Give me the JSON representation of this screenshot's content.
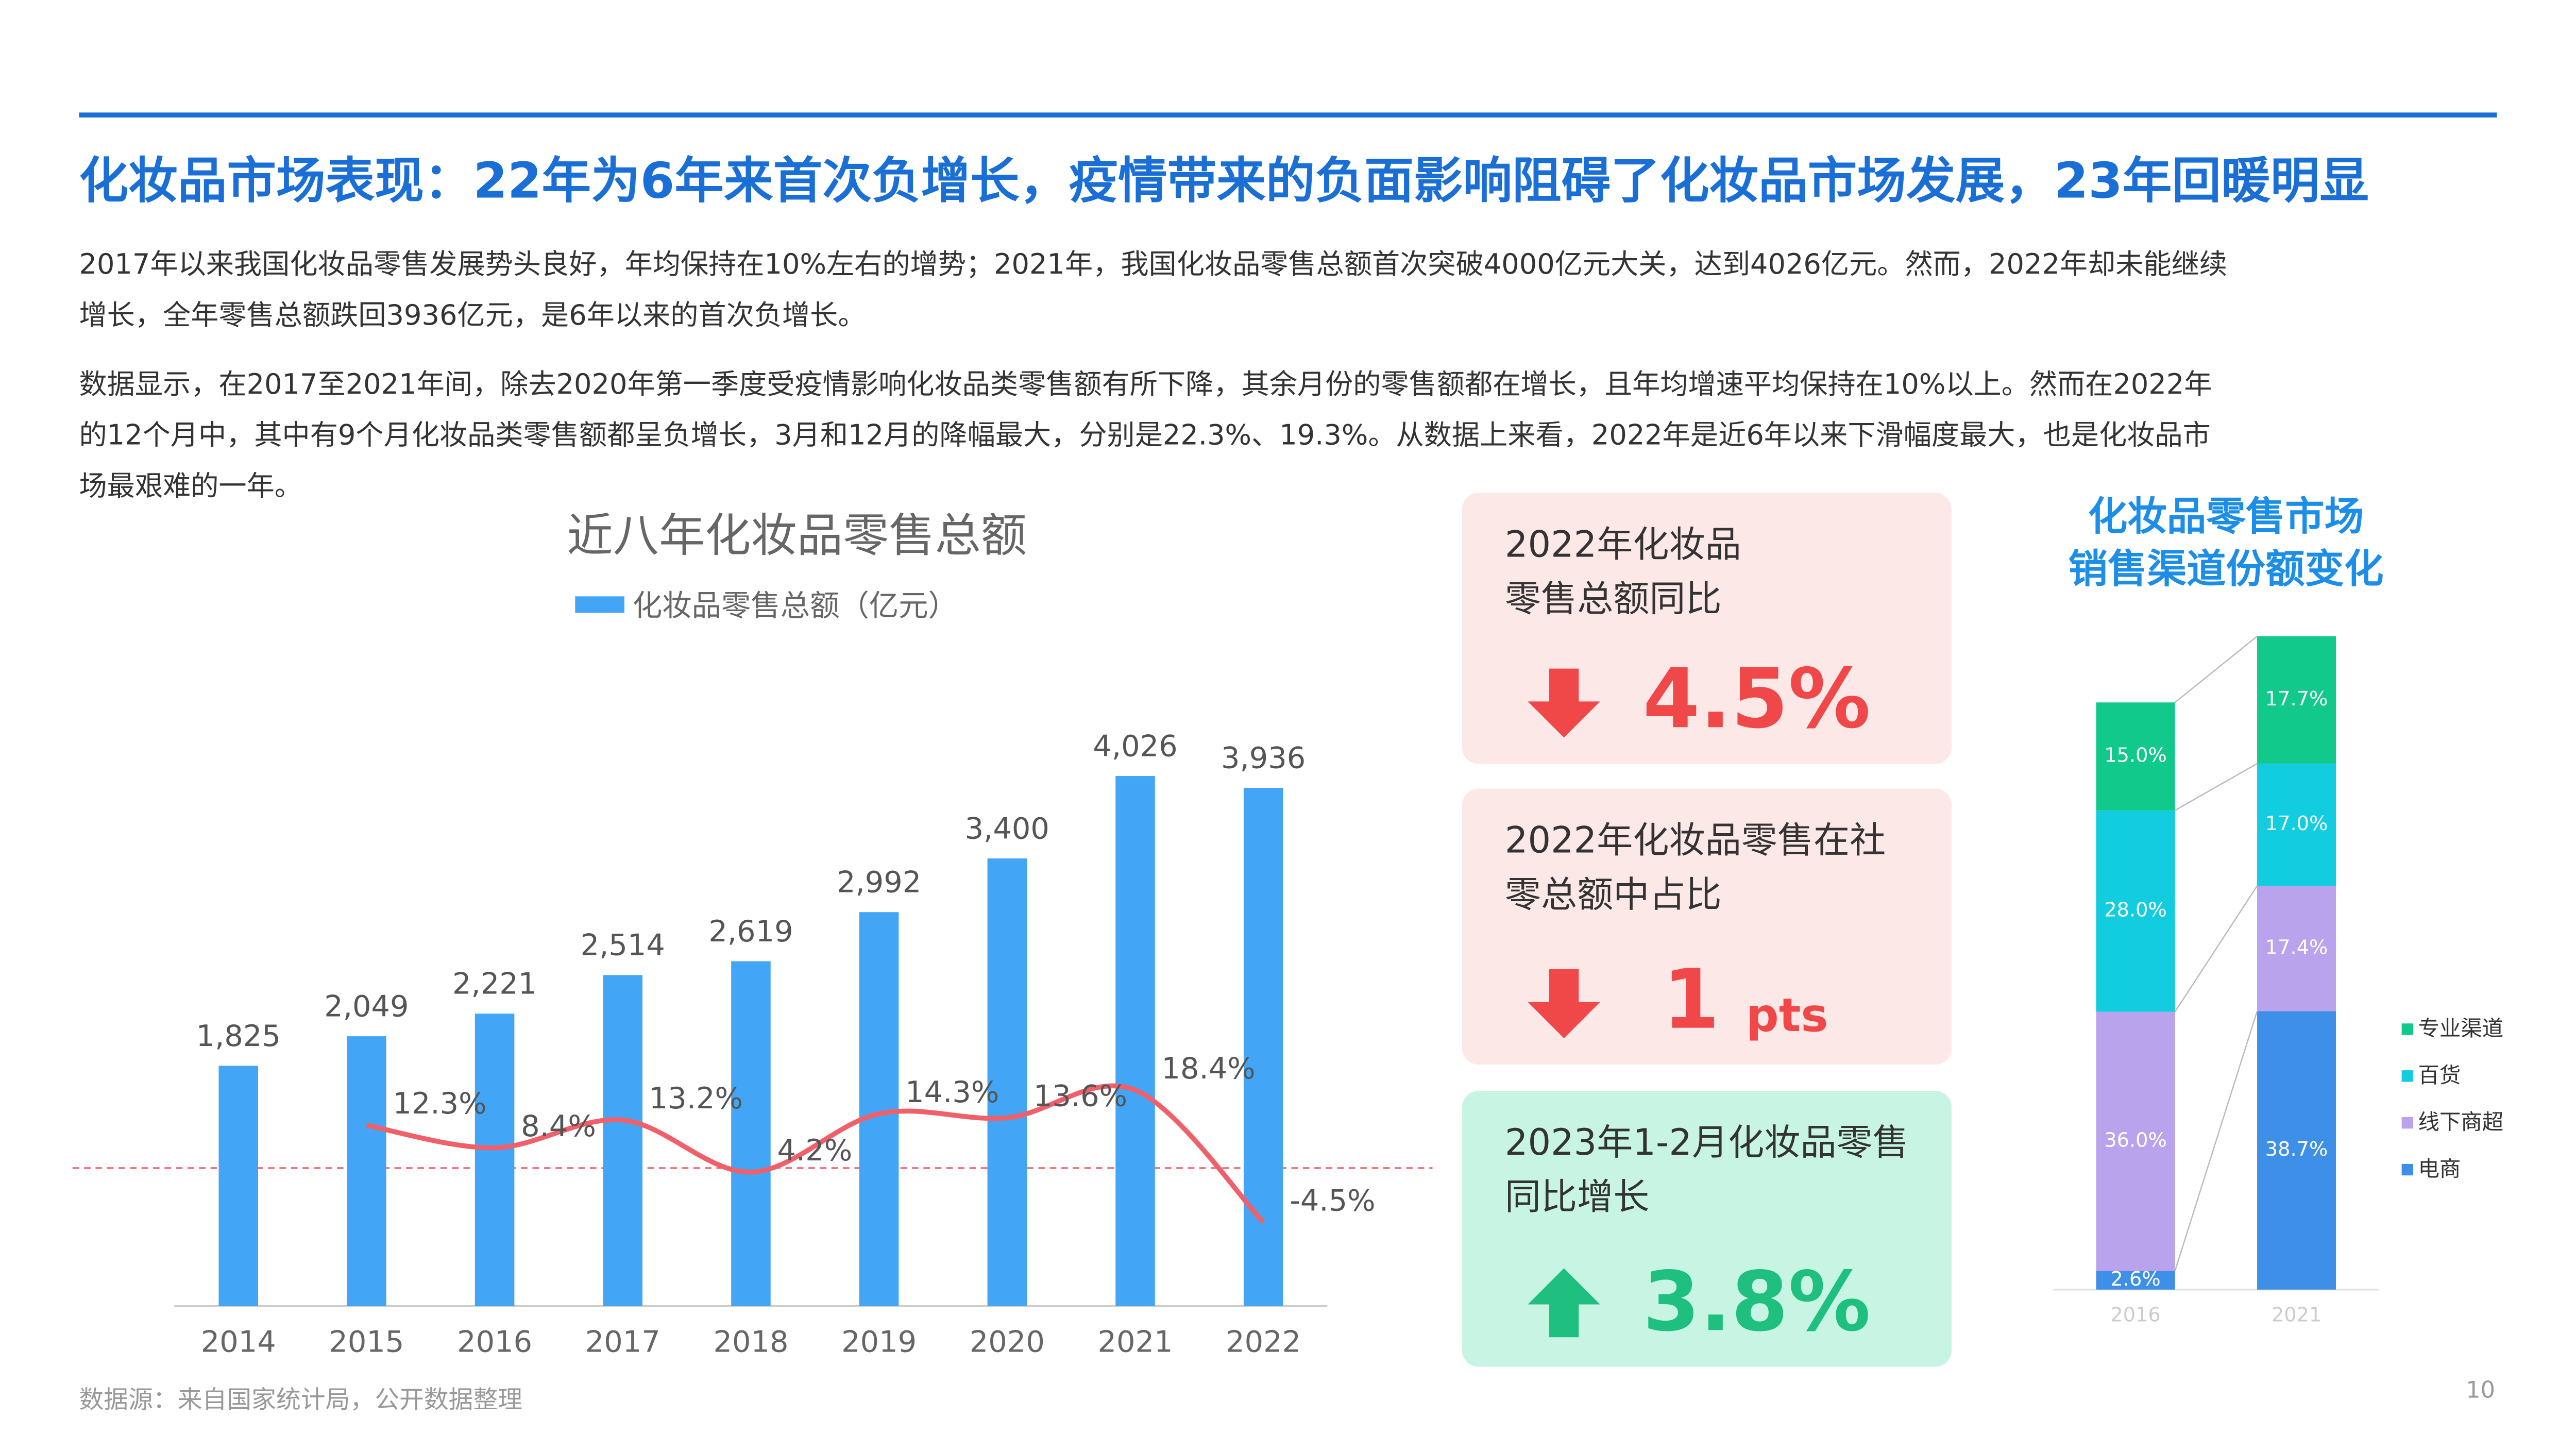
{
  "header": {
    "title": "化妆品市场表现：22年为6年来首次负增长，疫情带来的负面影响阻碍了化妆品市场发展，23年回暖明显"
  },
  "paragraphs": [
    [
      "2017年以来我国化妆品零售发展势头良好，年均保持在10%左右的增势；2021年，我国化妆品零售总额首次突破4000亿元大关，达到4026亿元。然而，2022年却未能继续",
      "增长，全年零售总额跌回3936亿元，是6年以来的首次负增长。"
    ],
    [
      "数据显示，在2017至2021年间，除去2020年第一季度受疫情影响化妆品类零售额有所下降，其余月份的零售额都在增长，且年均增速平均保持在10%以上。然而在2022年",
      "的12个月中，其中有9个月化妆品类零售额都呈负增长，3月和12月的降幅最大，分别是22.3%、19.3%。从数据上来看，2022年是近6年以来下滑幅度最大，也是化妆品市",
      "场最艰难的一年。"
    ]
  ],
  "chart_data": [
    {
      "type": "bar",
      "title": "近八年化妆品零售总额",
      "categories": [
        "2014",
        "2015",
        "2016",
        "2017",
        "2018",
        "2019",
        "2020",
        "2021",
        "2022"
      ],
      "ylim": [
        0,
        4430
      ],
      "y2lim": [
        -19,
        82
      ],
      "series": [
        {
          "name": "化妆品零售总额（亿元）",
          "type": "bar",
          "color": "#42a5f5",
          "values": [
            1825,
            2049,
            2221,
            2514,
            2619,
            2992,
            3400,
            4026,
            3936
          ],
          "value_labels": [
            "1,825",
            "2,049",
            "2,221",
            "2,514",
            "2,619",
            "2,992",
            "3,400",
            "4,026",
            "3,936"
          ]
        },
        {
          "type": "line",
          "axis": "y2",
          "color": "#f0606a",
          "values": [
            null,
            12.3,
            8.4,
            13.2,
            4.2,
            14.3,
            13.6,
            18.4,
            -4.5
          ],
          "value_labels": [
            null,
            "12.3%",
            "8.4%",
            "13.2%",
            "4.2%",
            "14.3%",
            "13.6%",
            "18.4%",
            "-4.5%"
          ]
        }
      ]
    },
    {
      "type": "stacked_bar",
      "title": [
        "化妆品零售市场",
        "销售渠道份额变化"
      ],
      "categories": [
        "2016",
        "2021"
      ],
      "ylim": [
        0,
        100
      ],
      "series": [
        {
          "name": "电商",
          "color": "#3d8fe8",
          "values": [
            2.6,
            38.7
          ],
          "value_labels": [
            "2.6%",
            "38.7%"
          ]
        },
        {
          "name": "线下商超",
          "color": "#b9a3ec",
          "values": [
            36.0,
            17.4
          ],
          "value_labels": [
            "36.0%",
            "17.4%"
          ]
        },
        {
          "name": "百货",
          "color": "#12cde0",
          "values": [
            28.0,
            17.0
          ],
          "value_labels": [
            "28.0%",
            "17.0%"
          ]
        },
        {
          "name": "专业渠道",
          "color": "#10c98a",
          "values": [
            15.0,
            17.7
          ],
          "value_labels": [
            "15.0%",
            "17.7%"
          ]
        }
      ]
    }
  ],
  "cards": [
    {
      "label": [
        "2022年化妆品",
        "零售总额同比"
      ],
      "value": "4.5%",
      "trend": "down"
    },
    {
      "label": [
        "2022年化妆品零售在社",
        "零总额中占比"
      ],
      "value": "1",
      "unit": "pts",
      "trend": "down"
    },
    {
      "label": [
        "2023年1-2月化妆品零售",
        "同比增长"
      ],
      "value": "3.8%",
      "trend": "up"
    }
  ],
  "footer": {
    "source": "数据源：来自国家统计局，公开数据整理",
    "page": "10"
  }
}
